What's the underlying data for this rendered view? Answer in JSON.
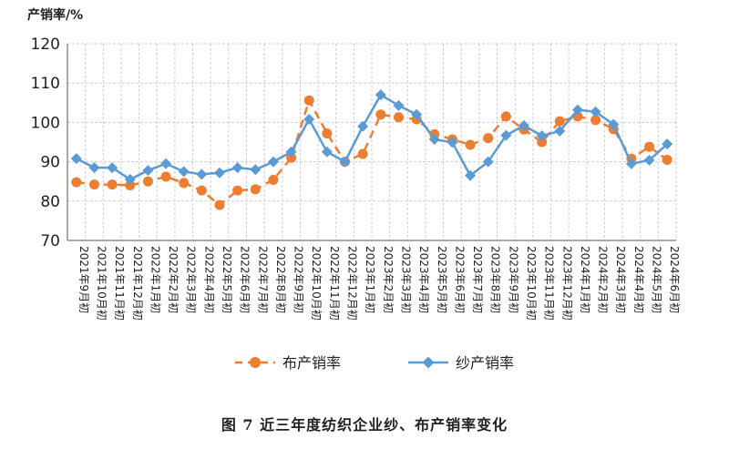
{
  "y_unit_label": "产销率/%",
  "caption": "图 7   近三年度纺织企业纱、布产销率变化",
  "chart_data": {
    "type": "line",
    "title": "",
    "xlabel": "",
    "ylabel": "产销率/%",
    "ylim": [
      70,
      120
    ],
    "yticks": [
      70,
      80,
      90,
      100,
      110,
      120
    ],
    "grid": true,
    "legend_position": "bottom",
    "categories": [
      "2021年9月初",
      "2021年10月初",
      "2021年11月初",
      "2021年12月初",
      "2022年1月初",
      "2022年2月初",
      "2022年3月初",
      "2022年4月初",
      "2022年5月初",
      "2022年6月初",
      "2022年7月初",
      "2022年8月初",
      "2022年9月初",
      "2022年10月初",
      "2022年11月初",
      "2022年12月初",
      "2023年1月初",
      "2023年2月初",
      "2023年3月初",
      "2023年4月初",
      "2023年5月初",
      "2023年6月初",
      "2023年7月初",
      "2023年8月初",
      "2023年9月初",
      "2023年10月初",
      "2023年11月初",
      "2023年12月初",
      "2024年1月初",
      "2024年2月初",
      "2024年3月初",
      "2024年4月初",
      "2024年5月初",
      "2024年6月初"
    ],
    "series": [
      {
        "name": "布产销率",
        "color": "#ED7D31",
        "style": "dashed",
        "marker": "circle",
        "values": [
          84.8,
          84.2,
          84.2,
          84.0,
          85.0,
          86.2,
          84.6,
          82.7,
          79.0,
          82.7,
          83.0,
          85.4,
          91.0,
          105.6,
          97.2,
          90.0,
          92.0,
          102.0,
          101.3,
          100.8,
          97.0,
          95.7,
          94.3,
          96.0,
          101.5,
          98.2,
          95.0,
          100.3,
          101.5,
          100.6,
          98.3,
          90.8,
          93.8,
          90.5
        ]
      },
      {
        "name": "纱产销率",
        "color": "#5B9BD5",
        "style": "solid",
        "marker": "diamond",
        "values": [
          90.8,
          88.5,
          88.5,
          85.5,
          87.8,
          89.5,
          87.5,
          86.8,
          87.2,
          88.5,
          88.0,
          90.0,
          92.5,
          100.8,
          92.5,
          90.0,
          99.0,
          107.0,
          104.3,
          102.0,
          95.7,
          94.9,
          86.5,
          90.0,
          96.7,
          99.2,
          96.6,
          97.8,
          103.2,
          102.7,
          99.5,
          89.5,
          90.4,
          94.5
        ]
      }
    ]
  }
}
